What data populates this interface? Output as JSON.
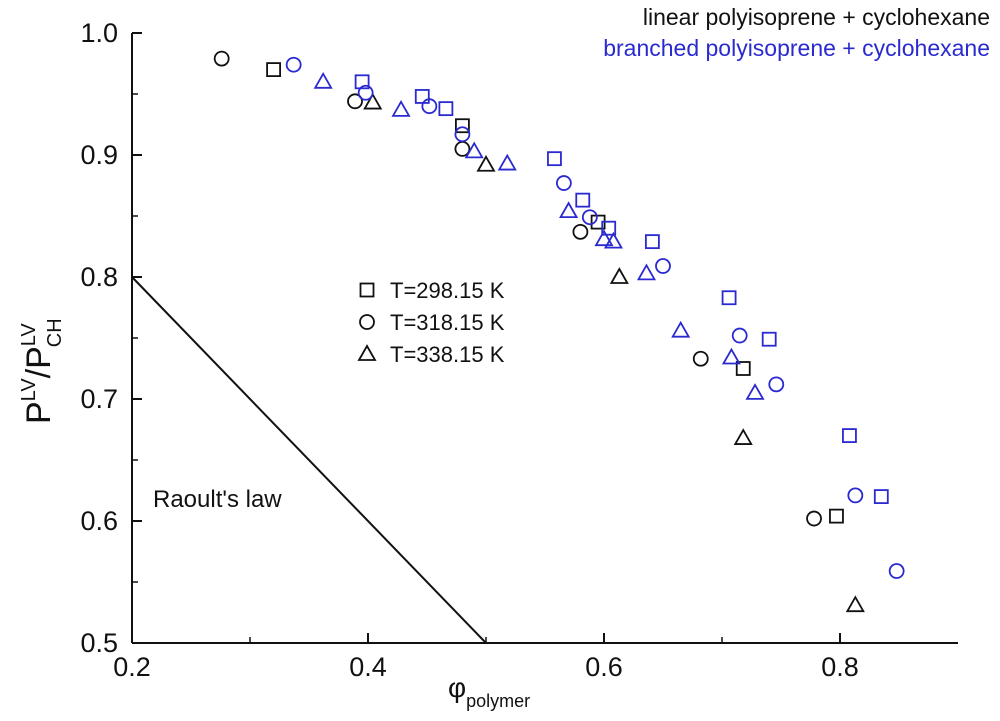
{
  "chart_data": {
    "type": "scatter",
    "title_lines": [
      {
        "text": "linear polyisoprene + cyclohexane",
        "color": "#111111"
      },
      {
        "text": "branched polyisoprene + cyclohexane",
        "color": "#2a2ad0"
      }
    ],
    "xlabel": {
      "main": "φ",
      "sub": "polymer"
    },
    "ylabel": {
      "p1": "P",
      "s1": "LV",
      "slash": "/P",
      "s2": "LV",
      "s3": "CH"
    },
    "xlim": [
      0.2,
      0.9
    ],
    "ylim": [
      0.5,
      1.0
    ],
    "x_ticks": [
      0.2,
      0.4,
      0.6,
      0.8
    ],
    "x_tick_labels": [
      "0.2",
      "0.4",
      "0.6",
      "0.8"
    ],
    "x_minor_ticks": [
      0.3,
      0.5,
      0.7
    ],
    "y_ticks": [
      0.5,
      0.6,
      0.7,
      0.8,
      0.9,
      1.0
    ],
    "y_tick_labels": [
      "0.5",
      "0.6",
      "0.7",
      "0.8",
      "0.9",
      "1.0"
    ],
    "colors": {
      "linear": "#111111",
      "branched": "#2a2ad0",
      "line": "#111111"
    },
    "legend": {
      "position": "center",
      "entries": [
        {
          "marker": "square",
          "label": "T=298.15 K"
        },
        {
          "marker": "circle",
          "label": "T=318.15 K"
        },
        {
          "marker": "triangle",
          "label": "T=338.15 K"
        }
      ]
    },
    "raoult_line": {
      "label": "Raoult's law",
      "x": [
        0.2,
        0.5
      ],
      "y": [
        0.8,
        0.5
      ]
    },
    "series": [
      {
        "name": "linear T=298.15 K",
        "polymer": "linear",
        "marker": "square",
        "x": [
          0.32,
          0.48,
          0.595,
          0.718,
          0.797
        ],
        "y": [
          0.97,
          0.924,
          0.845,
          0.725,
          0.604
        ]
      },
      {
        "name": "linear T=318.15 K",
        "polymer": "linear",
        "marker": "circle",
        "x": [
          0.276,
          0.389,
          0.48,
          0.58,
          0.682,
          0.778
        ],
        "y": [
          0.979,
          0.944,
          0.905,
          0.837,
          0.733,
          0.602
        ]
      },
      {
        "name": "linear T=338.15 K",
        "polymer": "linear",
        "marker": "triangle",
        "x": [
          0.404,
          0.5,
          0.613,
          0.718,
          0.813
        ],
        "y": [
          0.943,
          0.892,
          0.8,
          0.668,
          0.531
        ]
      },
      {
        "name": "branched T=298.15 K",
        "polymer": "branched",
        "marker": "square",
        "x": [
          0.395,
          0.446,
          0.466,
          0.558,
          0.582,
          0.641,
          0.706,
          0.74,
          0.808,
          0.835
        ],
        "y": [
          0.96,
          0.948,
          0.938,
          0.897,
          0.863,
          0.829,
          0.783,
          0.749,
          0.67,
          0.62
        ],
        "note": ""
      },
      {
        "name": "branched T=318.15 K",
        "polymer": "branched",
        "marker": "circle",
        "x": [
          0.337,
          0.398,
          0.452,
          0.48,
          0.566,
          0.588,
          0.65,
          0.715,
          0.746,
          0.813,
          0.848
        ],
        "y": [
          0.974,
          0.951,
          0.94,
          0.917,
          0.877,
          0.849,
          0.809,
          0.752,
          0.712,
          0.621,
          0.559
        ]
      },
      {
        "name": "branched T=338.15 K",
        "polymer": "branched",
        "marker": "triangle",
        "x": [
          0.362,
          0.428,
          0.49,
          0.518,
          0.57,
          0.6,
          0.608,
          0.636,
          0.665,
          0.708,
          0.728
        ],
        "y": [
          0.96,
          0.937,
          0.903,
          0.893,
          0.854,
          0.831,
          0.829,
          0.803,
          0.756,
          0.734,
          0.705
        ]
      }
    ],
    "extra_points": [
      {
        "series": "branched T=298.15 K",
        "x": 0.604,
        "y": 0.84
      }
    ]
  }
}
